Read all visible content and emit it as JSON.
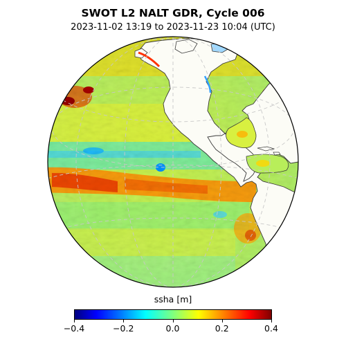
{
  "title": "SWOT L2 NALT GDR, Cycle 006",
  "subtitle": "2023-11-02 13:19 to 2023-11-23 10:04 (UTC)",
  "colorbar": {
    "label": "ssha [m]",
    "colormap": "jet",
    "vmin": -0.4,
    "vmax": 0.4,
    "ticks": [
      {
        "value": -0.4,
        "label": "−0.4"
      },
      {
        "value": -0.2,
        "label": "−0.2"
      },
      {
        "value": 0.0,
        "label": "0.0"
      },
      {
        "value": 0.2,
        "label": "0.2"
      },
      {
        "value": 0.4,
        "label": "0.4"
      }
    ]
  },
  "map": {
    "projection": "orthographic",
    "gridlines": true,
    "colors": {
      "land": "#fcfcf6",
      "coastline": "#3a3a3a",
      "gridline": "#c8c8c8"
    }
  }
}
